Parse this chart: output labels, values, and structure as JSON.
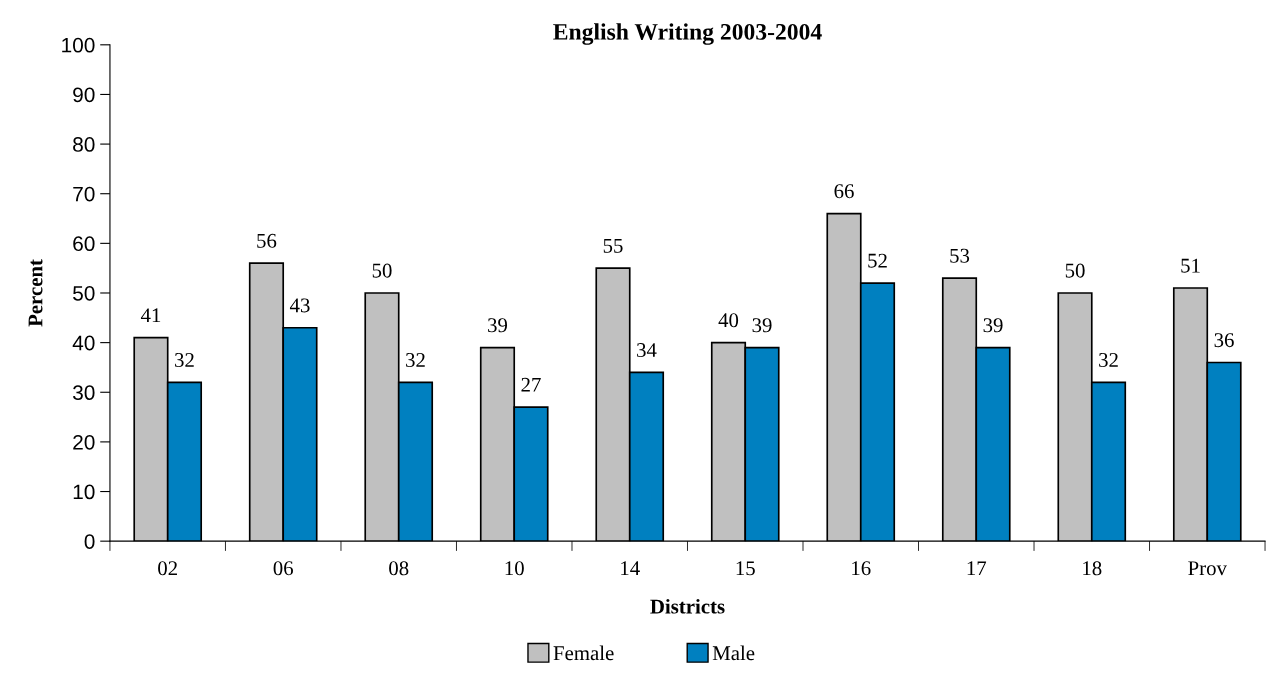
{
  "chart_data": {
    "type": "bar",
    "title": "English Writing 2003-2004",
    "xlabel": "Districts",
    "ylabel": "Percent",
    "categories": [
      "02",
      "06",
      "08",
      "10",
      "14",
      "15",
      "16",
      "17",
      "18",
      "Prov"
    ],
    "series": [
      {
        "name": "Female",
        "color": "#c0c0c0",
        "values": [
          41,
          56,
          50,
          39,
          55,
          40,
          66,
          53,
          50,
          51
        ]
      },
      {
        "name": "Male",
        "color": "#0080c0",
        "values": [
          32,
          43,
          32,
          27,
          34,
          39,
          52,
          39,
          32,
          36
        ]
      }
    ],
    "ylim": [
      0,
      100
    ],
    "yticks": [
      0,
      10,
      20,
      30,
      40,
      50,
      60,
      70,
      80,
      90,
      100
    ],
    "grid": false,
    "legend": "bottom",
    "data_labels": true
  }
}
